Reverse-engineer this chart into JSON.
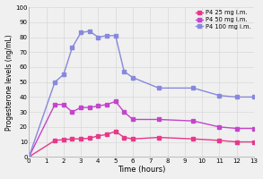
{
  "title": "",
  "xlabel": "Time (hours)",
  "ylabel": "Progesterone levels (ng/mL)",
  "series": [
    {
      "label": "P4 25 mg i.m.",
      "color": "#e8388a",
      "marker": "s",
      "x": [
        0,
        1.5,
        2,
        2.5,
        3,
        3.5,
        4,
        4.5,
        5,
        5.5,
        6,
        7.5,
        9.5,
        11,
        12,
        13
      ],
      "y": [
        0,
        11,
        11.5,
        12,
        12,
        12.5,
        14,
        15,
        17,
        13,
        12,
        13,
        12,
        11,
        10,
        10
      ]
    },
    {
      "label": "P4 50 mg i.m.",
      "color": "#c444cc",
      "marker": "s",
      "x": [
        0,
        1.5,
        2,
        2.5,
        3,
        3.5,
        4,
        4.5,
        5,
        5.5,
        6,
        7.5,
        9.5,
        11,
        12,
        13
      ],
      "y": [
        0,
        35,
        35,
        30,
        33,
        33,
        34,
        35,
        37,
        30,
        25,
        25,
        24,
        20,
        19,
        19
      ]
    },
    {
      "label": "P4 100 mg i.m.",
      "color": "#8888dd",
      "marker": "s",
      "x": [
        0,
        1.5,
        2,
        2.5,
        3,
        3.5,
        4,
        4.5,
        5,
        5.5,
        6,
        7.5,
        9.5,
        11,
        12,
        13
      ],
      "y": [
        0,
        50,
        55,
        73,
        83,
        84,
        80,
        81,
        81,
        57,
        53,
        46,
        46,
        41,
        40,
        40
      ]
    }
  ],
  "xlim": [
    0,
    13
  ],
  "ylim": [
    0,
    100
  ],
  "xticks": [
    0,
    1,
    2,
    3,
    4,
    5,
    6,
    7,
    8,
    9,
    10,
    11,
    12,
    13
  ],
  "yticks": [
    0,
    10,
    20,
    30,
    40,
    50,
    60,
    70,
    80,
    90,
    100
  ],
  "grid_color": "#d8d8d8",
  "bg_color": "#f0f0f0",
  "legend_loc": "upper right"
}
